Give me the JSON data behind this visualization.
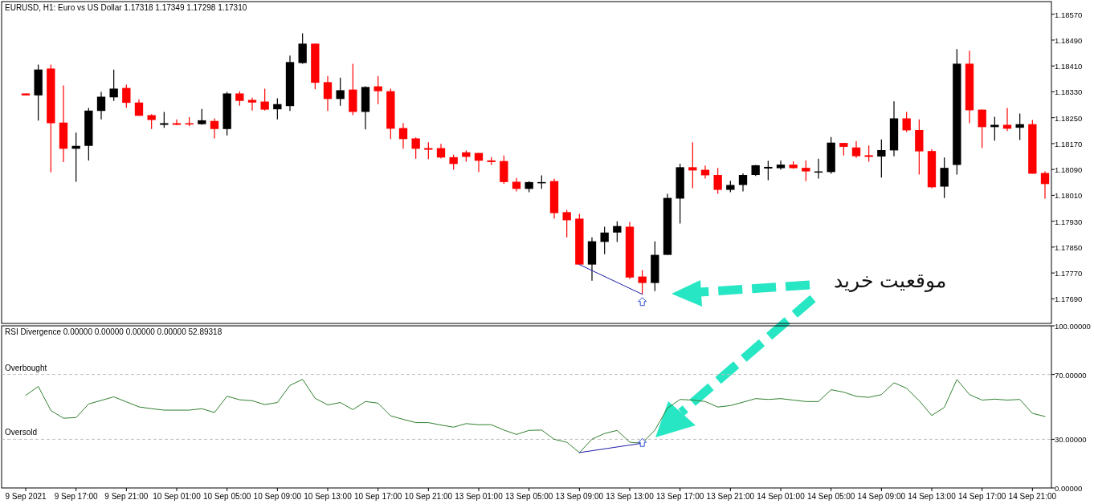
{
  "chart_data": [
    {
      "type": "candlestick",
      "title": "EURUSD, H1:  Euro vs US Dollar  1.17318 1.17349 1.17298 1.17310",
      "categories": [
        null,
        null,
        null,
        null,
        null,
        null,
        null,
        null,
        null,
        null,
        null,
        null,
        null,
        null,
        null,
        null,
        null,
        null,
        null,
        null,
        null,
        null,
        null,
        null,
        null,
        null,
        null,
        null,
        null,
        null,
        null,
        null,
        null,
        null,
        null,
        null,
        null,
        null,
        null,
        null,
        null,
        null,
        null,
        null,
        null,
        null,
        null,
        null,
        null,
        null,
        null,
        null,
        null,
        null,
        null,
        null,
        null,
        null,
        null,
        null,
        null,
        null,
        null,
        null,
        null,
        null,
        null,
        null,
        null,
        null,
        null,
        null,
        null,
        null,
        null,
        null,
        null,
        null,
        null,
        null,
        null,
        null
      ],
      "ohlc": [
        [
          1.18325,
          1.18325,
          1.18319,
          1.18319
        ],
        [
          1.18319,
          1.18414,
          1.18241,
          1.18399
        ],
        [
          1.18402,
          1.18414,
          1.18081,
          1.18233
        ],
        [
          1.18235,
          1.1835,
          1.18113,
          1.18154
        ],
        [
          1.18154,
          1.18204,
          1.18052,
          1.18163
        ],
        [
          1.18163,
          1.1828,
          1.18118,
          1.18272
        ],
        [
          1.18271,
          1.1833,
          1.18245,
          1.18315
        ],
        [
          1.18313,
          1.18399,
          1.18302,
          1.1834
        ],
        [
          1.18342,
          1.18352,
          1.18281,
          1.18296
        ],
        [
          1.18297,
          1.18307,
          1.18256,
          1.18256
        ],
        [
          1.18258,
          1.18261,
          1.18215,
          1.18243
        ],
        [
          1.18228,
          1.18268,
          1.18219,
          1.18233
        ],
        [
          1.18233,
          1.18245,
          1.18227,
          1.18228
        ],
        [
          1.18233,
          1.18252,
          1.18224,
          1.18229
        ],
        [
          1.1823,
          1.18277,
          1.18228,
          1.18242
        ],
        [
          1.1824,
          1.18248,
          1.18186,
          1.18215
        ],
        [
          1.18215,
          1.1833,
          1.18195,
          1.18325
        ],
        [
          1.18325,
          1.18332,
          1.18287,
          1.18302
        ],
        [
          1.18305,
          1.18312,
          1.18272,
          1.18297
        ],
        [
          1.183,
          1.1834,
          1.18272,
          1.18275
        ],
        [
          1.18276,
          1.1831,
          1.18245,
          1.18292
        ],
        [
          1.18286,
          1.18442,
          1.18271,
          1.18422
        ],
        [
          1.18419,
          1.18511,
          1.18417,
          1.18479
        ],
        [
          1.18479,
          1.18479,
          1.18338,
          1.18358
        ],
        [
          1.1836,
          1.18379,
          1.18271,
          1.18308
        ],
        [
          1.18308,
          1.18374,
          1.18287,
          1.18335
        ],
        [
          1.18337,
          1.18417,
          1.18258,
          1.18268
        ],
        [
          1.18268,
          1.18347,
          1.18214,
          1.18345
        ],
        [
          1.18347,
          1.18379,
          1.18292,
          1.18332
        ],
        [
          1.18332,
          1.1834,
          1.18184,
          1.18216
        ],
        [
          1.18218,
          1.18233,
          1.18154,
          1.18184
        ],
        [
          1.18186,
          1.18189,
          1.18123,
          1.18154
        ],
        [
          1.18156,
          1.18174,
          1.18122,
          1.18151
        ],
        [
          1.18156,
          1.18169,
          1.18124,
          1.18127
        ],
        [
          1.18128,
          1.18136,
          1.18089,
          1.18107
        ],
        [
          1.18143,
          1.18149,
          1.18114,
          1.18129
        ],
        [
          1.18141,
          1.18141,
          1.18082,
          1.18117
        ],
        [
          1.18118,
          1.18128,
          1.18104,
          1.18113
        ],
        [
          1.18116,
          1.18133,
          1.18046,
          1.18051
        ],
        [
          1.18052,
          1.18064,
          1.18022,
          1.1803
        ],
        [
          1.1803,
          1.18054,
          1.1802,
          1.18051
        ],
        [
          1.1805,
          1.18072,
          1.1803,
          1.18051
        ],
        [
          1.18054,
          1.18061,
          1.17938,
          1.17955
        ],
        [
          1.17958,
          1.17965,
          1.1788,
          1.17933
        ],
        [
          1.17938,
          1.17953,
          1.17796,
          1.17796
        ],
        [
          1.17796,
          1.1788,
          1.17746,
          1.17868
        ],
        [
          1.17866,
          1.17913,
          1.17828,
          1.17895
        ],
        [
          1.17895,
          1.1793,
          1.17866,
          1.17915
        ],
        [
          1.17913,
          1.17928,
          1.17751,
          1.17756
        ],
        [
          1.17759,
          1.17779,
          1.17704,
          1.17739
        ],
        [
          1.17739,
          1.17868,
          1.17714,
          1.17826
        ],
        [
          1.17826,
          1.18015,
          1.17826,
          1.18002
        ],
        [
          1.18,
          1.18108,
          1.17923,
          1.18097
        ],
        [
          1.18097,
          1.18174,
          1.18032,
          1.18087
        ],
        [
          1.18089,
          1.18102,
          1.18062,
          1.18072
        ],
        [
          1.18073,
          1.18095,
          1.18015,
          1.18027
        ],
        [
          1.18027,
          1.18055,
          1.1802,
          1.18042
        ],
        [
          1.18042,
          1.18078,
          1.18022,
          1.18073
        ],
        [
          1.18073,
          1.18104,
          1.1807,
          1.18103
        ],
        [
          1.18093,
          1.18117,
          1.18057,
          1.18098
        ],
        [
          1.18094,
          1.18118,
          1.18089,
          1.18105
        ],
        [
          1.18105,
          1.18115,
          1.18092,
          1.18094
        ],
        [
          1.18095,
          1.18118,
          1.18054,
          1.18084
        ],
        [
          1.18083,
          1.18123,
          1.18062,
          1.18084
        ],
        [
          1.18082,
          1.1819,
          1.18077,
          1.18173
        ],
        [
          1.18172,
          1.18172,
          1.18133,
          1.1816
        ],
        [
          1.18158,
          1.18178,
          1.18126,
          1.18131
        ],
        [
          1.18134,
          1.18164,
          1.18114,
          1.18129
        ],
        [
          1.1813,
          1.18183,
          1.18065,
          1.1815
        ],
        [
          1.18149,
          1.18301,
          1.18131,
          1.18248
        ],
        [
          1.18248,
          1.18268,
          1.18206,
          1.18211
        ],
        [
          1.18212,
          1.18245,
          1.18074,
          1.18146
        ],
        [
          1.18147,
          1.18153,
          1.18032,
          1.18035
        ],
        [
          1.18037,
          1.18127,
          1.18002,
          1.18095
        ],
        [
          1.18104,
          1.18462,
          1.18074,
          1.18417
        ],
        [
          1.18417,
          1.18457,
          1.18233,
          1.18273
        ],
        [
          1.18275,
          1.18275,
          1.18156,
          1.18221
        ],
        [
          1.18221,
          1.18253,
          1.18179,
          1.18228
        ],
        [
          1.18228,
          1.1828,
          1.18209,
          1.18216
        ],
        [
          1.18219,
          1.18263,
          1.18181,
          1.1823
        ],
        [
          1.1823,
          1.18243,
          1.18077,
          1.18077
        ],
        [
          1.18079,
          1.18084,
          1.18,
          1.18045
        ]
      ],
      "colors": [
        "#ff0000",
        "#000000",
        "#ff0000",
        "#ff0000",
        "#000000",
        "#000000",
        "#000000",
        "#000000",
        "#ff0000",
        "#ff0000",
        "#ff0000",
        "#000000",
        "#ff0000",
        "#ff0000",
        "#000000",
        "#ff0000",
        "#000000",
        "#ff0000",
        "#ff0000",
        "#ff0000",
        "#000000",
        "#000000",
        "#000000",
        "#ff0000",
        "#ff0000",
        "#000000",
        "#ff0000",
        "#000000",
        "#ff0000",
        "#ff0000",
        "#ff0000",
        "#ff0000",
        "#ff0000",
        "#ff0000",
        "#ff0000",
        "#ff0000",
        "#ff0000",
        "#ff0000",
        "#ff0000",
        "#ff0000",
        "#000000",
        "#000000",
        "#ff0000",
        "#ff0000",
        "#ff0000",
        "#000000",
        "#000000",
        "#000000",
        "#ff0000",
        "#ff0000",
        "#000000",
        "#000000",
        "#000000",
        "#ff0000",
        "#ff0000",
        "#ff0000",
        "#000000",
        "#000000",
        "#000000",
        "#000000",
        "#000000",
        "#ff0000",
        "#ff0000",
        "#000000",
        "#000000",
        "#ff0000",
        "#ff0000",
        "#ff0000",
        "#000000",
        "#000000",
        "#ff0000",
        "#ff0000",
        "#ff0000",
        "#000000",
        "#000000",
        "#ff0000",
        "#ff0000",
        "#000000",
        "#ff0000",
        "#000000",
        "#ff0000",
        "#ff0000"
      ],
      "series": [
        {
          "type": "line",
          "color": "#1c1ca8",
          "values": [
            null,
            null,
            null,
            null,
            null,
            null,
            null,
            null,
            null,
            null,
            null,
            null,
            null,
            null,
            null,
            null,
            null,
            null,
            null,
            null,
            null,
            null,
            null,
            null,
            null,
            null,
            null,
            null,
            null,
            null,
            null,
            null,
            null,
            null,
            null,
            null,
            null,
            null,
            null,
            null,
            null,
            null,
            null,
            null,
            1.17796,
            null,
            null,
            null,
            null,
            1.17704,
            null,
            null,
            null,
            null,
            null,
            null,
            null,
            null,
            null,
            null,
            null,
            null,
            null,
            null,
            null,
            null,
            null,
            null,
            null,
            null,
            null,
            null,
            null,
            null,
            null,
            null,
            null,
            null,
            null,
            null,
            null,
            null
          ]
        }
      ],
      "ylim": [
        1.17614,
        1.18609
      ],
      "yticks": [
        {
          "value": 1.1769,
          "label": "1.17690"
        },
        {
          "value": 1.1777,
          "label": "1.17770"
        },
        {
          "value": 1.1785,
          "label": "1.17850"
        },
        {
          "value": 1.1793,
          "label": "1.17930"
        },
        {
          "value": 1.1801,
          "label": "1.18010"
        },
        {
          "value": 1.1809,
          "label": "1.18090"
        },
        {
          "value": 1.1817,
          "label": "1.18170"
        },
        {
          "value": 1.1825,
          "label": "1.18250"
        },
        {
          "value": 1.1833,
          "label": "1.18330"
        },
        {
          "value": 1.1841,
          "label": "1.18410"
        },
        {
          "value": 1.1849,
          "label": "1.18490"
        },
        {
          "value": 1.1857,
          "label": "1.18570"
        }
      ],
      "tick_labels": "y",
      "annotations": [
        "موقعیت خرید"
      ]
    },
    {
      "type": "line",
      "title": "RSI Divergence 0.00000 0.00000 0.00000 0.00000 52.89318",
      "categories": [
        "9 Sep 2021",
        null,
        null,
        null,
        "9 Sep 17:00",
        null,
        null,
        null,
        "9 Sep 21:00",
        null,
        null,
        null,
        "10 Sep 01:00",
        null,
        null,
        null,
        "10 Sep 05:00",
        null,
        null,
        null,
        "10 Sep 09:00",
        null,
        null,
        null,
        "10 Sep 13:00",
        null,
        null,
        null,
        "10 Sep 17:00",
        null,
        null,
        null,
        "10 Sep 21:00",
        null,
        null,
        null,
        "13 Sep 01:00",
        null,
        null,
        null,
        "13 Sep 05:00",
        null,
        null,
        null,
        "13 Sep 09:00",
        null,
        null,
        null,
        "13 Sep 13:00",
        null,
        null,
        null,
        "13 Sep 17:00",
        null,
        null,
        null,
        "13 Sep 21:00",
        null,
        null,
        null,
        "14 Sep 01:00",
        null,
        null,
        null,
        "14 Sep 05:00",
        null,
        null,
        null,
        "14 Sep 09:00",
        null,
        null,
        null,
        "14 Sep 13:00",
        null,
        null,
        null,
        "14 Sep 17:00",
        null,
        null,
        null,
        "14 Sep 21:00",
        null
      ],
      "series": [
        {
          "color": "#2f7f2f",
          "values": [
            57.1,
            62.6,
            47.8,
            43.0,
            43.4,
            51.8,
            54.0,
            56.2,
            53.1,
            50.0,
            48.9,
            48.0,
            48.0,
            48.0,
            48.9,
            46.5,
            56.6,
            54.4,
            53.8,
            51.4,
            52.7,
            63.3,
            67.0,
            55.3,
            51.2,
            52.7,
            48.3,
            53.3,
            52.3,
            44.5,
            42.3,
            40.3,
            40.3,
            38.8,
            37.5,
            39.7,
            39.0,
            39.0,
            35.7,
            33.0,
            35.5,
            35.7,
            30.0,
            28.2,
            21.8,
            30.1,
            33.6,
            35.5,
            28.2,
            27.6,
            35.7,
            49.2,
            54.6,
            54.2,
            53.3,
            49.9,
            50.8,
            52.9,
            55.1,
            54.6,
            55.1,
            54.2,
            53.3,
            53.3,
            60.6,
            59.1,
            56.5,
            55.9,
            57.6,
            64.9,
            61.5,
            53.8,
            44.7,
            49.7,
            66.9,
            57.6,
            54.2,
            54.8,
            54.2,
            54.6,
            46.0,
            44.1
          ]
        },
        {
          "color": "#1c1ca8",
          "values": [
            null,
            null,
            null,
            null,
            null,
            null,
            null,
            null,
            null,
            null,
            null,
            null,
            null,
            null,
            null,
            null,
            null,
            null,
            null,
            null,
            null,
            null,
            null,
            null,
            null,
            null,
            null,
            null,
            null,
            null,
            null,
            null,
            null,
            null,
            null,
            null,
            null,
            null,
            null,
            null,
            null,
            null,
            null,
            null,
            21.8,
            null,
            null,
            null,
            null,
            27.6,
            null,
            null,
            null,
            null,
            null,
            null,
            null,
            null,
            null,
            null,
            null,
            null,
            null,
            null,
            null,
            null,
            null,
            null,
            null,
            null,
            null,
            null,
            null,
            null,
            null,
            null,
            null,
            null,
            null,
            null,
            null,
            null
          ]
        }
      ],
      "ylim": [
        0,
        100
      ],
      "yticks": [
        {
          "value": 0,
          "label": "0.00000"
        },
        {
          "value": 30,
          "label": "30.00000"
        },
        {
          "value": 70,
          "label": "70.00000"
        },
        {
          "value": 100,
          "label": "100.00000"
        }
      ],
      "ref_lines": [
        {
          "axis": "y",
          "value": 70,
          "label": "Overbought",
          "color": "#c0c0c0",
          "line_style": "dashed"
        },
        {
          "axis": "y",
          "value": 30,
          "label": "Oversold",
          "color": "#c0c0c0",
          "line_style": "dashed"
        }
      ]
    }
  ]
}
